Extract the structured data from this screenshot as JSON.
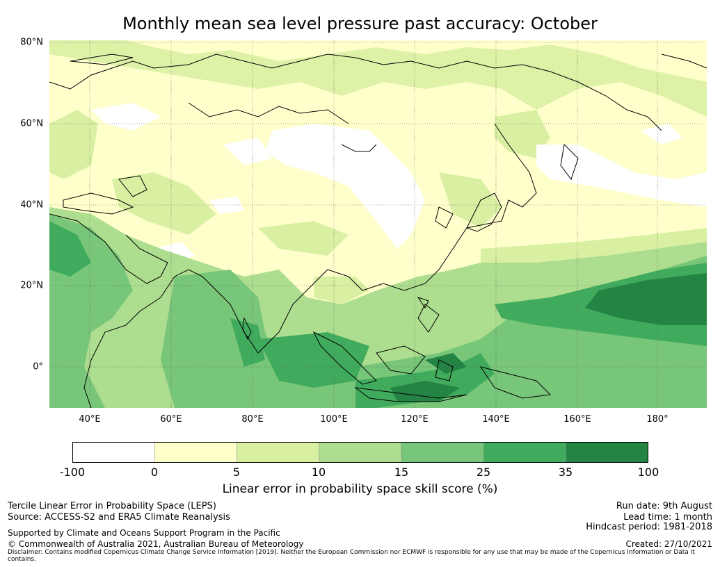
{
  "title": "Monthly mean sea level pressure past accuracy: October",
  "map": {
    "lat_labels": [
      "80°N",
      "60°N",
      "40°N",
      "20°N",
      "0°"
    ],
    "lon_labels": [
      "40°E",
      "60°E",
      "80°E",
      "100°E",
      "120°E",
      "140°E",
      "160°E",
      "180°"
    ],
    "region": {
      "lon_range": [
        30,
        192
      ],
      "lat_range": [
        -10,
        80
      ]
    }
  },
  "colorbar": {
    "ticks": [
      "-100",
      "0",
      "5",
      "10",
      "15",
      "25",
      "35",
      "100"
    ],
    "colors": [
      "#ffffff",
      "#ffffcc",
      "#d9f0a3",
      "#addd8e",
      "#78c679",
      "#41ab5d",
      "#238443"
    ],
    "label": "Linear error in probability space skill score (%)"
  },
  "footer": {
    "left_line1": "Tercile Linear Error in Probability Space (LEPS)",
    "left_line2": "Source: ACCESS-S2 and ERA5 Climate Reanalysis",
    "left_line3": "Supported by Climate and Oceans Support Program in the Pacific",
    "left_line4": "© Commonwealth of Australia 2021, Australian Bureau of Meteorology",
    "disclaimer": "Disclaimer: Contains modified Copernicus Climate Change Service Information [2019]. Neither the European Commission nor ECMWF is responsible for any use that may be made of the Copernicus Information or Data it contains.",
    "run_date": "Run date: 9th August",
    "lead_time": "Lead time: 1 month",
    "hindcast": "Hindcast period: 1981-2018",
    "created": "Created: 27/10/2021"
  }
}
